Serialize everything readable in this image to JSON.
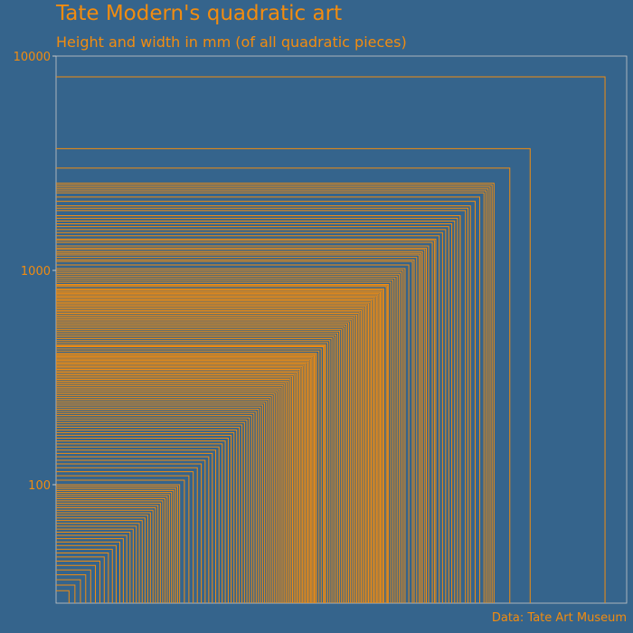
{
  "chart_data": {
    "type": "area",
    "title": "Tate Modern's quadratic art",
    "subtitle": "Height and width in mm (of all quadratic pieces)",
    "caption": "Data: Tate Art Museum",
    "xlabel": "",
    "ylabel": "",
    "scale": "log10",
    "ylim": [
      28,
      10000
    ],
    "xlim": [
      28,
      10000
    ],
    "y_ticks": [
      "100",
      "1000",
      "10000"
    ],
    "grid": false,
    "legend": "none",
    "description_values_mm": [
      8000,
      3700,
      3000,
      2550,
      2500,
      2450,
      2400,
      2350,
      2300,
      2200,
      2100,
      2000,
      1950,
      1900,
      1800,
      1800,
      1750,
      1700,
      1650,
      1600,
      1550,
      1500,
      1450,
      1400,
      1380,
      1350,
      1300,
      1270,
      1250,
      1220,
      1200,
      1180,
      1150,
      1120,
      1100,
      1060,
      1020,
      1000,
      980,
      960,
      940,
      920,
      900,
      880,
      860,
      850,
      840,
      820,
      810,
      800,
      790,
      780,
      770,
      760,
      750,
      740,
      730,
      720,
      710,
      700,
      690,
      680,
      670,
      660,
      650,
      640,
      630,
      620,
      610,
      600,
      590,
      580,
      570,
      560,
      550,
      540,
      530,
      520,
      510,
      500,
      490,
      480,
      470,
      460,
      450,
      445,
      440,
      430,
      420,
      410,
      405,
      400,
      395,
      390,
      385,
      380,
      375,
      370,
      365,
      360,
      355,
      350,
      345,
      340,
      335,
      330,
      325,
      320,
      315,
      310,
      305,
      300,
      295,
      290,
      285,
      280,
      275,
      270,
      265,
      260,
      255,
      250,
      245,
      240,
      235,
      230,
      225,
      220,
      215,
      210,
      205,
      200,
      195,
      190,
      185,
      180,
      175,
      170,
      165,
      160,
      155,
      150,
      145,
      140,
      135,
      130,
      125,
      120,
      115,
      110,
      105,
      100,
      98,
      96,
      94,
      92,
      90,
      88,
      86,
      84,
      82,
      80,
      78,
      76,
      74,
      72,
      70,
      68,
      66,
      64,
      62,
      60,
      58,
      56,
      54,
      52,
      50,
      48,
      46,
      44,
      42,
      40,
      38,
      36,
      34,
      32
    ],
    "colors": {
      "background": "#35648c",
      "stroke": "#f28c0f",
      "text": "#f28c0f",
      "axis": "#c8c8c8"
    }
  }
}
